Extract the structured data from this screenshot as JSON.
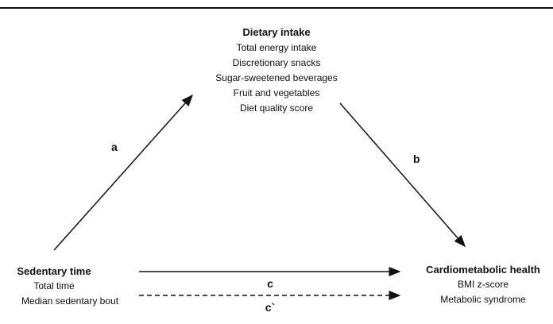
{
  "nodes": [
    {
      "label": "Dietary intake",
      "items": [
        "Total energy intake",
        "Discretionary snacks",
        "Sugar-sweetened beverages",
        "Fruit and vegetables",
        "Diet quality score"
      ]
    },
    {
      "label": "Sedentary time",
      "items": [
        "Total time",
        "Median sedentary bout"
      ]
    },
    {
      "label": "Cardiometabolic health",
      "items": [
        "BMI z-score",
        "Metabolic syndrome"
      ]
    }
  ],
  "paths": [
    "a",
    "b",
    "c",
    "c`"
  ]
}
